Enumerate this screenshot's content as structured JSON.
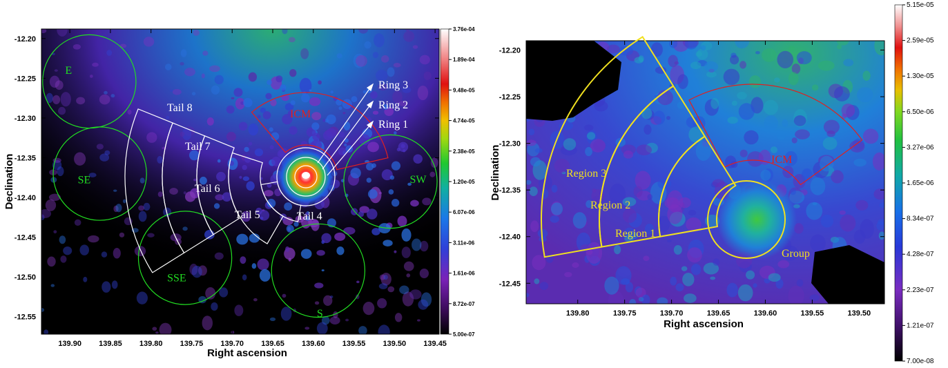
{
  "chart_data": [
    {
      "type": "heatmap",
      "xlabel": "Right ascension",
      "ylabel": "Declination",
      "xlim": [
        139.935,
        139.445
      ],
      "ylim": [
        -12.572,
        -12.188
      ],
      "x_ticks": [
        "139.90",
        "139.85",
        "139.80",
        "139.75",
        "139.70",
        "139.65",
        "139.60",
        "139.55",
        "139.50",
        "139.45"
      ],
      "y_ticks": [
        "-12.20",
        "-12.25",
        "-12.30",
        "-12.35",
        "-12.40",
        "-12.45",
        "-12.50",
        "-12.55"
      ],
      "colorbar": {
        "scale": "log",
        "ticks": [
          "3.76e-04",
          "1.89e-04",
          "9.48e-05",
          "4.74e-05",
          "2.38e-05",
          "1.20e-05",
          "6.07e-06",
          "3.11e-06",
          "1.61e-06",
          "8.72e-07",
          "5.00e-07"
        ]
      },
      "background_regions": [
        {
          "label": "E",
          "ra": 139.876,
          "dec": -12.254,
          "color": "#22dd22"
        },
        {
          "label": "SE",
          "ra": 139.863,
          "dec": -12.37,
          "color": "#22dd22"
        },
        {
          "label": "SSE",
          "ra": 139.758,
          "dec": -12.476,
          "color": "#22dd22"
        },
        {
          "label": "S",
          "ra": 139.594,
          "dec": -12.492,
          "color": "#22dd22"
        },
        {
          "label": "SW",
          "ra": 139.505,
          "dec": -12.38,
          "color": "#22dd22"
        }
      ],
      "tail_regions": [
        "Tail 4",
        "Tail 5",
        "Tail 6",
        "Tail 7",
        "Tail 8"
      ],
      "rings": [
        "Ring 1",
        "Ring 2",
        "Ring 3"
      ],
      "icm_label": "ICM"
    },
    {
      "type": "heatmap",
      "xlabel": "Right ascension",
      "ylabel": "Declination",
      "xlim": [
        139.855,
        139.473
      ],
      "ylim": [
        -12.472,
        -12.19
      ],
      "x_ticks": [
        "139.80",
        "139.75",
        "139.70",
        "139.65",
        "139.60",
        "139.55",
        "139.50"
      ],
      "y_ticks": [
        "-12.20",
        "-12.25",
        "-12.30",
        "-12.35",
        "-12.40",
        "-12.45"
      ],
      "colorbar": {
        "scale": "log",
        "ticks": [
          "5.15e-05",
          "2.59e-05",
          "1.30e-05",
          "6.50e-06",
          "3.27e-06",
          "1.65e-06",
          "8.34e-07",
          "4.28e-07",
          "2.23e-07",
          "1.21e-07",
          "7.00e-08"
        ]
      },
      "regions": [
        "Region 1",
        "Region 2",
        "Region 3"
      ],
      "group_label": "Group",
      "icm_label": "ICM"
    }
  ]
}
